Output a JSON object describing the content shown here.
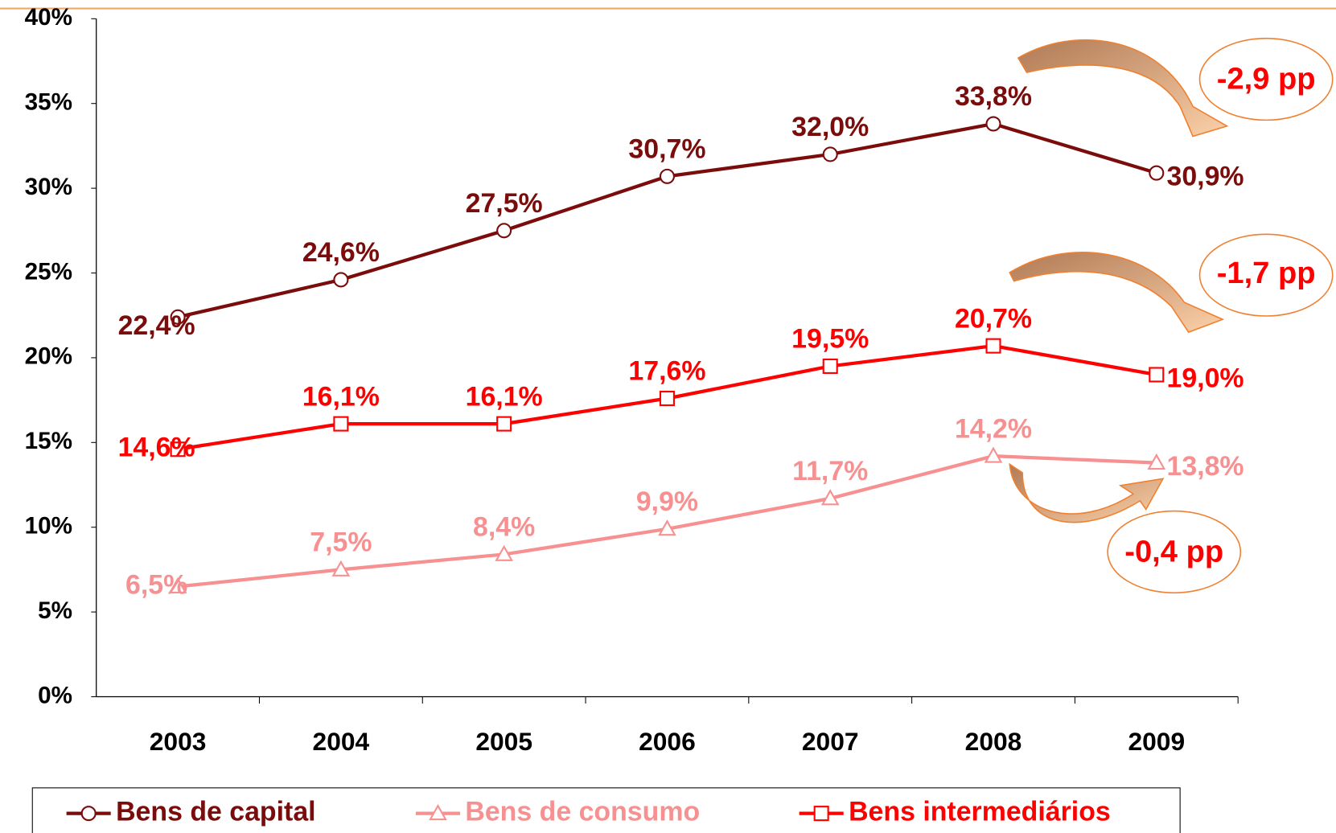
{
  "chart_data": {
    "type": "line",
    "categories": [
      "2003",
      "2004",
      "2005",
      "2006",
      "2007",
      "2008",
      "2009"
    ],
    "series": [
      {
        "name": "Bens de capital",
        "color": "#7b0c0c",
        "marker": "circle",
        "values": [
          22.4,
          24.6,
          27.5,
          30.7,
          32.0,
          33.8,
          30.9
        ],
        "value_labels": [
          "22,4%",
          "24,6%",
          "27,5%",
          "30,7%",
          "32,0%",
          "33,8%",
          "30,9%"
        ]
      },
      {
        "name": "Bens de consumo",
        "color": "#f79090",
        "marker": "triangle",
        "values": [
          6.5,
          7.5,
          8.4,
          9.9,
          11.7,
          14.2,
          13.8
        ],
        "value_labels": [
          "6,5%",
          "7,5%",
          "8,4%",
          "9,9%",
          "11,7%",
          "14,2%",
          "13,8%"
        ]
      },
      {
        "name": "Bens intermediários",
        "color": "#ff0000",
        "marker": "square",
        "values": [
          14.6,
          16.1,
          16.1,
          17.6,
          19.5,
          20.7,
          19.0
        ],
        "value_labels": [
          "14,6%",
          "16,1%",
          "16,1%",
          "17,6%",
          "19,5%",
          "20,7%",
          "19,0%"
        ]
      }
    ],
    "ylim": [
      0,
      40
    ],
    "yticks": [
      {
        "value": 0,
        "label": "0%"
      },
      {
        "value": 5,
        "label": "5%"
      },
      {
        "value": 10,
        "label": "10%"
      },
      {
        "value": 15,
        "label": "15%"
      },
      {
        "value": 20,
        "label": "20%"
      },
      {
        "value": 25,
        "label": "25%"
      },
      {
        "value": 30,
        "label": "30%"
      },
      {
        "value": 35,
        "label": "35%"
      },
      {
        "value": 40,
        "label": "40%"
      }
    ],
    "annotations": [
      "-2,9 pp",
      "-1,7 pp",
      "-0,4 pp"
    ],
    "legend": "bottom"
  }
}
